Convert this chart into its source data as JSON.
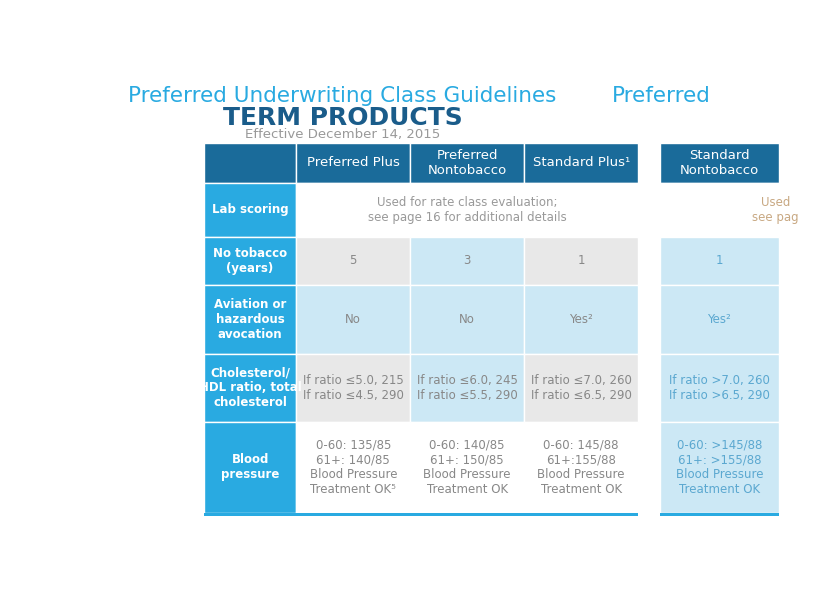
{
  "title1": "Preferred Underwriting Class Guidelines",
  "title2": "TERM PRODUCTS",
  "subtitle": "Effective December 14, 2015",
  "right_title": "Preferred",
  "bg_color": "#ffffff",
  "header_bg": "#1a6b9a",
  "header_text_color": "#ffffff",
  "row_label_bg": "#29aae1",
  "row_label_text_color": "#ffffff",
  "cell_bg_light": "#cce8f5",
  "cell_bg_grey": "#e8e8e8",
  "cell_bg_white": "#f5f5f5",
  "title_color1": "#29aae1",
  "title_color2": "#1a5c8a",
  "subtitle_color": "#999999",
  "body_text_color": "#888888",
  "right_body_text_color": "#5ba8d0",
  "columns": [
    "Preferred Plus",
    "Preferred\nNontobacco",
    "Standard Plus¹"
  ],
  "right_columns": [
    "Standard\nNontobacco"
  ],
  "row_labels": [
    "Lab scoring",
    "No tobacco\n(years)",
    "Aviation or\nhazardous\navocation",
    "Cholesterol/\nHDL ratio, total\ncholesterol",
    "Blood\npressure"
  ],
  "cell_data": [
    [
      "Used for rate class evaluation;\nsee page 16 for additional details",
      "",
      ""
    ],
    [
      "5",
      "3",
      "1"
    ],
    [
      "No",
      "No",
      "Yes²"
    ],
    [
      "If ratio ≤5.0, 215\nIf ratio ≤4.5, 290",
      "If ratio ≤6.0, 245\nIf ratio ≤5.5, 290",
      "If ratio ≤7.0, 260\nIf ratio ≤6.5, 290"
    ],
    [
      "0-60: 135/85\n61+: 140/85\nBlood Pressure\nTreatment OK⁵",
      "0-60: 140/85\n61+: 150/85\nBlood Pressure\nTreatment OK",
      "0-60: 145/88\n61+:155/88\nBlood Pressure\nTreatment OK"
    ]
  ],
  "right_cell_data": [
    [
      "Used\nsee pag"
    ],
    [
      "1"
    ],
    [
      "Yes²"
    ],
    [
      "If ratio >7.0, 260\nIf ratio >6.5, 290"
    ],
    [
      "0-60: >145/88\n61+: >155/88\nBlood Pressure\nTreatment OK"
    ]
  ],
  "row_cell_bgs": [
    [
      "#ffffff",
      "#ffffff",
      "#ffffff"
    ],
    [
      "#e8e8e8",
      "#cce8f5",
      "#e8e8e8"
    ],
    [
      "#cce8f5",
      "#cce8f5",
      "#cce8f5"
    ],
    [
      "#e8e8e8",
      "#cce8f5",
      "#e8e8e8"
    ],
    [
      "#ffffff",
      "#ffffff",
      "#ffffff"
    ]
  ],
  "right_row_bgs": [
    "#ffffff",
    "#cce8f5",
    "#cce8f5",
    "#cce8f5",
    "#cce8f5"
  ]
}
